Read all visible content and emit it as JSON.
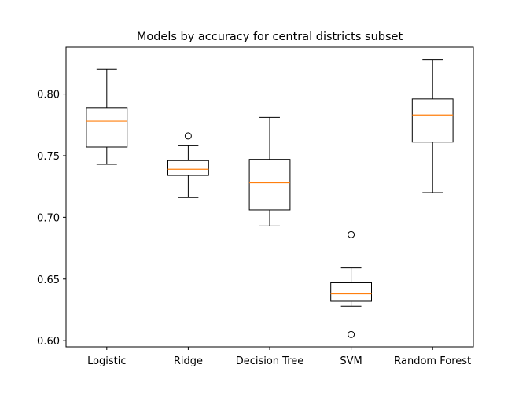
{
  "chart_data": {
    "type": "box",
    "title": "Models by accuracy for central districts subset",
    "xlabel": "",
    "ylabel": "",
    "categories": [
      "Logistic",
      "Ridge",
      "Decision Tree",
      "SVM",
      "Random Forest"
    ],
    "ylim": [
      0.595,
      0.838
    ],
    "yticks": [
      0.6,
      0.65,
      0.7,
      0.75,
      0.8
    ],
    "ytick_labels": [
      "0.60",
      "0.65",
      "0.70",
      "0.75",
      "0.80"
    ],
    "grid": false,
    "boxes": [
      {
        "category": "Logistic",
        "whisker_low": 0.743,
        "q1": 0.757,
        "median": 0.778,
        "q3": 0.789,
        "whisker_high": 0.82,
        "outliers": []
      },
      {
        "category": "Ridge",
        "whisker_low": 0.716,
        "q1": 0.734,
        "median": 0.739,
        "q3": 0.746,
        "whisker_high": 0.758,
        "outliers": [
          0.766
        ]
      },
      {
        "category": "Decision Tree",
        "whisker_low": 0.693,
        "q1": 0.706,
        "median": 0.728,
        "q3": 0.747,
        "whisker_high": 0.781,
        "outliers": []
      },
      {
        "category": "SVM",
        "whisker_low": 0.628,
        "q1": 0.632,
        "median": 0.638,
        "q3": 0.647,
        "whisker_high": 0.659,
        "outliers": [
          0.686,
          0.605
        ]
      },
      {
        "category": "Random Forest",
        "whisker_low": 0.72,
        "q1": 0.761,
        "median": 0.783,
        "q3": 0.796,
        "whisker_high": 0.828,
        "outliers": []
      }
    ],
    "colors": {
      "box": "#000000",
      "median": "#ff7f0e",
      "outlier": "#000000",
      "axes": "#000000",
      "background": "#ffffff"
    }
  }
}
